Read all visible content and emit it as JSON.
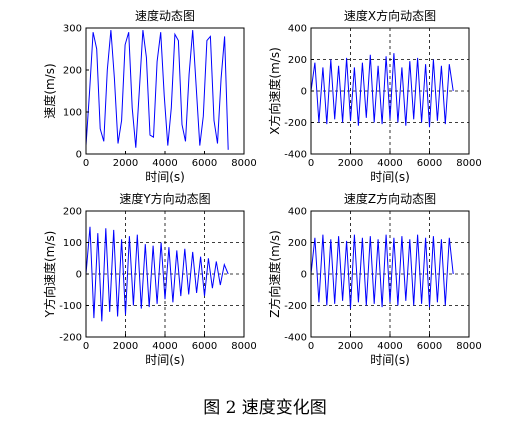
{
  "figure_caption": "图 2  速度变化图",
  "chart_data": [
    {
      "type": "line",
      "title": "速度动态图",
      "xlabel": "",
      "ylabel": "速度(m/s)",
      "xlim": [
        0,
        8000
      ],
      "ylim": [
        0,
        300
      ],
      "xticks": [
        "0",
        "2000",
        "4000",
        "6000",
        "8000"
      ],
      "yticks": [
        "0",
        "100",
        "200",
        "300"
      ],
      "grid": false,
      "color": "#0000ff",
      "series": [
        {
          "x": [
            0,
            180,
            360,
            540,
            720,
            900,
            1080,
            1260,
            1440,
            1620,
            1800,
            1980,
            2160,
            2340,
            2520,
            2700,
            2880,
            3060,
            3240,
            3420,
            3600,
            3780,
            3960,
            4140,
            4320,
            4500,
            4680,
            4860,
            5040,
            5220,
            5400,
            5580,
            5760,
            5940,
            6120,
            6300,
            6480,
            6660,
            6840,
            7020,
            7200
          ],
          "y": [
            20,
            150,
            290,
            250,
            60,
            30,
            200,
            295,
            180,
            25,
            80,
            260,
            290,
            110,
            15,
            150,
            295,
            230,
            45,
            40,
            220,
            290,
            140,
            20,
            110,
            285,
            270,
            70,
            30,
            190,
            295,
            160,
            20,
            90,
            270,
            280,
            80,
            25,
            180,
            280,
            10
          ]
        }
      ]
    },
    {
      "type": "line",
      "title": "速度X方向动态图",
      "xlabel": "",
      "ylabel": "X方向速度(m/s)",
      "xlim": [
        0,
        8000
      ],
      "ylim": [
        -400,
        400
      ],
      "xticks": [
        "0",
        "2000",
        "4000",
        "6000",
        "8000"
      ],
      "yticks": [
        "-400",
        "-200",
        "0",
        "200",
        "400"
      ],
      "grid": true,
      "color": "#0000ff",
      "series": [
        {
          "x": [
            0,
            200,
            400,
            600,
            800,
            1000,
            1200,
            1400,
            1600,
            1800,
            2000,
            2200,
            2400,
            2600,
            2800,
            3000,
            3200,
            3400,
            3600,
            3800,
            4000,
            4200,
            4400,
            4600,
            4800,
            5000,
            5200,
            5400,
            5600,
            5800,
            6000,
            6200,
            6400,
            6600,
            6800,
            7000,
            7200
          ],
          "y": [
            0,
            180,
            -200,
            150,
            -210,
            200,
            -180,
            160,
            -200,
            210,
            -190,
            150,
            -220,
            180,
            -170,
            230,
            -200,
            160,
            -210,
            220,
            -180,
            240,
            -200,
            150,
            -220,
            190,
            -180,
            210,
            -200,
            170,
            -230,
            200,
            -190,
            160,
            -210,
            170,
            0
          ]
        }
      ]
    },
    {
      "type": "line",
      "title": "速度Y方向动态图",
      "xlabel": "时间(s)",
      "ylabel": "Y方向速度(m/s)",
      "xlim": [
        0,
        8000
      ],
      "ylim": [
        -200,
        200
      ],
      "xticks": [
        "0",
        "2000",
        "4000",
        "6000",
        "8000"
      ],
      "yticks": [
        "-200",
        "-100",
        "0",
        "100",
        "200"
      ],
      "grid": true,
      "color": "#0000ff",
      "series": [
        {
          "x": [
            0,
            200,
            400,
            600,
            800,
            1000,
            1200,
            1400,
            1600,
            1800,
            2000,
            2200,
            2400,
            2600,
            2800,
            3000,
            3200,
            3400,
            3600,
            3800,
            4000,
            4200,
            4400,
            4600,
            4800,
            5000,
            5200,
            5400,
            5600,
            5800,
            6000,
            6200,
            6400,
            6600,
            6800,
            7000,
            7200
          ],
          "y": [
            0,
            150,
            -140,
            130,
            -150,
            145,
            -120,
            140,
            -135,
            110,
            -130,
            120,
            -100,
            125,
            -110,
            95,
            -105,
            90,
            -95,
            100,
            -80,
            85,
            -90,
            75,
            -70,
            80,
            -65,
            70,
            -60,
            55,
            -70,
            50,
            -45,
            40,
            -35,
            30,
            0
          ]
        }
      ]
    },
    {
      "type": "line",
      "title": "速度Z方向动态图",
      "xlabel": "时间(s)",
      "ylabel": "Z方向速度(m/s)",
      "xlim": [
        0,
        8000
      ],
      "ylim": [
        -400,
        400
      ],
      "xticks": [
        "0",
        "2000",
        "4000",
        "6000",
        "8000"
      ],
      "yticks": [
        "-400",
        "-200",
        "0",
        "200",
        "400"
      ],
      "grid": true,
      "color": "#0000ff",
      "series": [
        {
          "x": [
            0,
            200,
            400,
            600,
            800,
            1000,
            1200,
            1400,
            1600,
            1800,
            2000,
            2200,
            2400,
            2600,
            2800,
            3000,
            3200,
            3400,
            3600,
            3800,
            4000,
            4200,
            4400,
            4600,
            4800,
            5000,
            5200,
            5400,
            5600,
            5800,
            6000,
            6200,
            6400,
            6600,
            6800,
            7000,
            7200
          ],
          "y": [
            0,
            230,
            -180,
            250,
            -200,
            220,
            -190,
            240,
            -170,
            210,
            -220,
            250,
            -180,
            230,
            -200,
            240,
            -190,
            220,
            -210,
            250,
            -180,
            230,
            -200,
            240,
            -170,
            220,
            -200,
            250,
            -190,
            230,
            -210,
            240,
            -180,
            220,
            -200,
            230,
            0
          ]
        }
      ]
    }
  ]
}
